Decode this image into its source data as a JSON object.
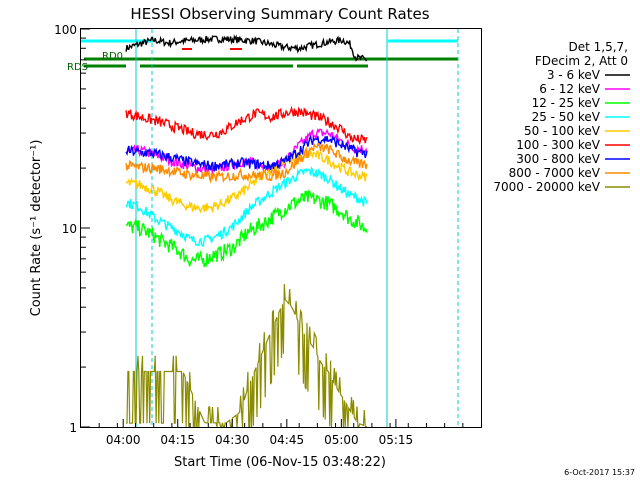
{
  "chart_data": {
    "type": "line",
    "title": "HESSI Observing Summary Count Rates",
    "xlabel": "Start Time (06-Nov-15 03:48:22)",
    "ylabel": "Count Rate (s⁻¹ detector⁻¹)",
    "x_ticks": [
      "04:00",
      "04:15",
      "04:30",
      "04:45",
      "05:00",
      "05:15"
    ],
    "x_range_min": [
      0,
      110
    ],
    "x_ticks_min": [
      11.6,
      26.6,
      41.6,
      56.6,
      71.6,
      86.6
    ],
    "y_scale": "log",
    "ylim": [
      1,
      100
    ],
    "y_ticks": [
      "1",
      "10",
      "100"
    ],
    "legend_header": [
      "Det 1,5,7,",
      "FDecim 2, Att 0"
    ],
    "legend_placement": "right",
    "annotations": [
      {
        "text": "RD0"
      },
      {
        "text": "RDS"
      }
    ],
    "footer_date": "6-Oct-2017 15:37",
    "series": [
      {
        "name": "3 - 6 keV",
        "color": "#000000",
        "start": 12.4,
        "end": 78.7,
        "points": [
          [
            12.4,
            80
          ],
          [
            16,
            84
          ],
          [
            20,
            88
          ],
          [
            24,
            85
          ],
          [
            28,
            87
          ],
          [
            32,
            88
          ],
          [
            36,
            89
          ],
          [
            40,
            89
          ],
          [
            44,
            88
          ],
          [
            48,
            87
          ],
          [
            52,
            84
          ],
          [
            56,
            81
          ],
          [
            60,
            80
          ],
          [
            64,
            83
          ],
          [
            68,
            86
          ],
          [
            72,
            88
          ],
          [
            74,
            84
          ],
          [
            75.5,
            72
          ],
          [
            78.7,
            70
          ]
        ]
      },
      {
        "name": "6 - 12 keV",
        "color": "#ff00ff",
        "start": 12.4,
        "end": 78.7,
        "points": [
          [
            12.4,
            24
          ],
          [
            16,
            24.5
          ],
          [
            20,
            23.5
          ],
          [
            24,
            22
          ],
          [
            28,
            21
          ],
          [
            32,
            20
          ],
          [
            36,
            19.5
          ],
          [
            40,
            20.5
          ],
          [
            44,
            21.5
          ],
          [
            48,
            21
          ],
          [
            52,
            20
          ],
          [
            56,
            21.5
          ],
          [
            60,
            26
          ],
          [
            64,
            30
          ],
          [
            68,
            30
          ],
          [
            72,
            27
          ],
          [
            76,
            25
          ],
          [
            78.7,
            25
          ]
        ]
      },
      {
        "name": "12 - 25 keV",
        "color": "#00ff00",
        "start": 12.4,
        "end": 78.7,
        "points": [
          [
            12.4,
            10.2
          ],
          [
            16,
            10
          ],
          [
            20,
            9.2
          ],
          [
            22,
            8.6
          ],
          [
            26,
            7.9
          ],
          [
            28,
            7.4
          ],
          [
            30,
            6.9
          ],
          [
            34,
            6.9
          ],
          [
            36,
            7.3
          ],
          [
            38,
            7.4
          ],
          [
            42,
            8
          ],
          [
            46,
            9.6
          ],
          [
            50,
            10.5
          ],
          [
            54,
            11.8
          ],
          [
            58,
            13.2
          ],
          [
            62,
            14.2
          ],
          [
            64,
            14
          ],
          [
            68,
            13.3
          ],
          [
            70,
            12.6
          ],
          [
            72,
            12
          ],
          [
            74,
            11.1
          ],
          [
            76,
            10.7
          ],
          [
            78,
            10
          ],
          [
            78.7,
            10
          ]
        ]
      },
      {
        "name": "25 - 50 keV",
        "color": "#00ffff",
        "start": 12.4,
        "end": 78.7,
        "points": [
          [
            12.4,
            13.5
          ],
          [
            16,
            12.8
          ],
          [
            20,
            11.3
          ],
          [
            24,
            10.2
          ],
          [
            26,
            9.8
          ],
          [
            28,
            9.4
          ],
          [
            30,
            8.7
          ],
          [
            34,
            8.6
          ],
          [
            36,
            8.9
          ],
          [
            38,
            9.2
          ],
          [
            42,
            10.3
          ],
          [
            46,
            12.3
          ],
          [
            48,
            13.2
          ],
          [
            52,
            15
          ],
          [
            56,
            16.8
          ],
          [
            60,
            18.5
          ],
          [
            62,
            19.3
          ],
          [
            64,
            19
          ],
          [
            66,
            18.5
          ],
          [
            68,
            17.8
          ],
          [
            70,
            16.5
          ],
          [
            74,
            14.6
          ],
          [
            76,
            14.2
          ],
          [
            78,
            13.5
          ],
          [
            78.7,
            13.2
          ]
        ]
      },
      {
        "name": "50 - 100 keV",
        "color": "#ffcc00",
        "start": 12.4,
        "end": 78.7,
        "points": [
          [
            12.4,
            16.8
          ],
          [
            16,
            16.5
          ],
          [
            20,
            15.6
          ],
          [
            24,
            14.2
          ],
          [
            26,
            13.6
          ],
          [
            28,
            13.1
          ],
          [
            32,
            12.6
          ],
          [
            36,
            12.7
          ],
          [
            38,
            13.1
          ],
          [
            42,
            14.2
          ],
          [
            46,
            16
          ],
          [
            50,
            18.5
          ],
          [
            54,
            20.5
          ],
          [
            58,
            22.2
          ],
          [
            62,
            23.5
          ],
          [
            64,
            23.5
          ],
          [
            66,
            22.7
          ],
          [
            68,
            22
          ],
          [
            70,
            20.8
          ],
          [
            74,
            19
          ],
          [
            76,
            18.5
          ],
          [
            78.7,
            18
          ]
        ]
      },
      {
        "name": "100 - 300 keV",
        "color": "#ff0000",
        "start": 12.4,
        "end": 78.7,
        "points": [
          [
            12.4,
            38
          ],
          [
            16,
            36.3
          ],
          [
            20,
            34.7
          ],
          [
            24,
            33.1
          ],
          [
            26,
            32
          ],
          [
            28,
            31.3
          ],
          [
            30,
            30.1
          ],
          [
            34,
            29.5
          ],
          [
            36,
            29.5
          ],
          [
            38,
            30.1
          ],
          [
            40,
            31.3
          ],
          [
            42,
            33.1
          ],
          [
            44,
            34.7
          ],
          [
            46,
            36
          ],
          [
            48,
            37.5
          ],
          [
            50,
            37.2
          ],
          [
            52,
            36.1
          ],
          [
            54,
            36.8
          ],
          [
            56,
            37.8
          ],
          [
            58,
            38.6
          ],
          [
            60,
            38.4
          ],
          [
            62,
            37.5
          ],
          [
            64,
            36.5
          ],
          [
            66,
            35.6
          ],
          [
            68,
            34.2
          ],
          [
            70,
            32.7
          ],
          [
            72,
            31
          ],
          [
            74,
            28.5
          ],
          [
            76,
            27.8
          ],
          [
            78.7,
            27.5
          ]
        ]
      },
      {
        "name": "300 - 800 keV",
        "color": "#0000ff",
        "start": 12.4,
        "end": 78.7,
        "points": [
          [
            12.4,
            24.5
          ],
          [
            16,
            24
          ],
          [
            20,
            23.7
          ],
          [
            24,
            22.8
          ],
          [
            28,
            21.8
          ],
          [
            32,
            21
          ],
          [
            36,
            20.5
          ],
          [
            40,
            20.8
          ],
          [
            44,
            21.2
          ],
          [
            48,
            21
          ],
          [
            52,
            20.5
          ],
          [
            56,
            21.5
          ],
          [
            60,
            24.5
          ],
          [
            64,
            28
          ],
          [
            68,
            28
          ],
          [
            72,
            26
          ],
          [
            76,
            24
          ],
          [
            78.7,
            23.8
          ]
        ]
      },
      {
        "name": "800 - 7000 keV",
        "color": "#ff8c00",
        "start": 12.4,
        "end": 78.7,
        "points": [
          [
            12.4,
            20.5
          ],
          [
            16,
            20.2
          ],
          [
            20,
            20
          ],
          [
            24,
            19.5
          ],
          [
            28,
            18.8
          ],
          [
            32,
            18.3
          ],
          [
            36,
            18
          ],
          [
            40,
            18.2
          ],
          [
            44,
            18.5
          ],
          [
            48,
            18.4
          ],
          [
            52,
            18.2
          ],
          [
            56,
            19
          ],
          [
            60,
            22
          ],
          [
            64,
            25.5
          ],
          [
            68,
            25
          ],
          [
            72,
            22.5
          ],
          [
            76,
            21
          ],
          [
            78.7,
            20.8
          ]
        ]
      },
      {
        "name": "7000 - 20000 keV",
        "color": "#8b8b00",
        "start": 12.4,
        "end": 78.7,
        "points": [
          [
            12.4,
            1.9
          ],
          [
            20,
            1.9
          ],
          [
            24,
            1.9
          ],
          [
            28,
            1.9
          ],
          [
            34,
            1.05
          ],
          [
            40,
            1.05
          ],
          [
            44,
            1.2
          ],
          [
            46,
            1.6
          ],
          [
            50,
            2.4
          ],
          [
            54,
            3.6
          ],
          [
            56,
            4.4
          ],
          [
            58,
            4
          ],
          [
            60,
            3.3
          ],
          [
            62,
            2.8
          ],
          [
            64,
            2.5
          ],
          [
            66,
            2.1
          ],
          [
            68,
            1.9
          ],
          [
            70,
            1.6
          ],
          [
            72,
            1.4
          ],
          [
            76,
            1.05
          ],
          [
            78.7,
            1
          ]
        ]
      }
    ]
  }
}
